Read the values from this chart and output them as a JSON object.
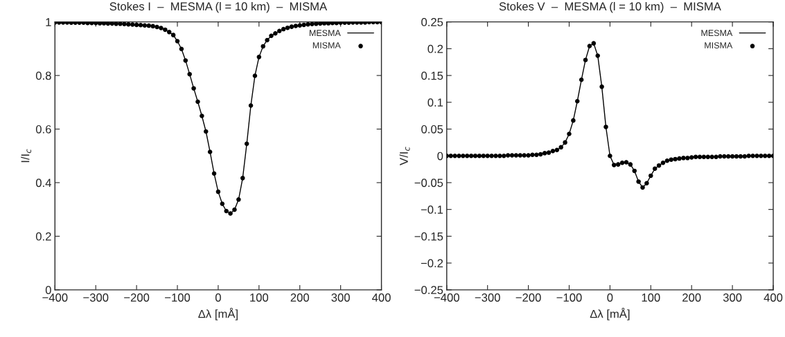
{
  "chart_data": [
    {
      "type": "line",
      "title": "Stokes I  –  MESMA (l = 10 km)  –  MISMA",
      "xlabel": "Δλ [mÅ]",
      "ylabel": "I/I$_{c}$",
      "x": [
        -400,
        -390,
        -380,
        -370,
        -360,
        -350,
        -340,
        -330,
        -320,
        -310,
        -300,
        -290,
        -280,
        -270,
        -260,
        -250,
        -240,
        -230,
        -220,
        -210,
        -200,
        -190,
        -180,
        -170,
        -160,
        -150,
        -140,
        -130,
        -120,
        -110,
        -100,
        -90,
        -80,
        -70,
        -60,
        -50,
        -40,
        -30,
        -20,
        -10,
        0,
        10,
        20,
        30,
        40,
        50,
        60,
        70,
        80,
        90,
        100,
        110,
        120,
        130,
        140,
        150,
        160,
        170,
        180,
        190,
        200,
        210,
        220,
        230,
        240,
        250,
        260,
        270,
        280,
        290,
        300,
        310,
        320,
        330,
        340,
        350,
        360,
        370,
        380,
        390,
        400
      ],
      "series": [
        {
          "name": "MESMA",
          "color": "#000000",
          "marker": "none",
          "values": [
            0.998,
            0.998,
            0.998,
            0.998,
            0.997,
            0.997,
            0.997,
            0.997,
            0.996,
            0.996,
            0.996,
            0.995,
            0.995,
            0.994,
            0.994,
            0.993,
            0.993,
            0.992,
            0.991,
            0.99,
            0.989,
            0.988,
            0.987,
            0.986,
            0.984,
            0.981,
            0.977,
            0.971,
            0.962,
            0.951,
            0.928,
            0.899,
            0.856,
            0.805,
            0.752,
            0.702,
            0.649,
            0.591,
            0.515,
            0.434,
            0.366,
            0.321,
            0.294,
            0.285,
            0.299,
            0.337,
            0.417,
            0.545,
            0.688,
            0.799,
            0.869,
            0.909,
            0.932,
            0.948,
            0.957,
            0.966,
            0.973,
            0.978,
            0.982,
            0.985,
            0.987,
            0.989,
            0.991,
            0.992,
            0.993,
            0.994,
            0.995,
            0.995,
            0.996,
            0.996,
            0.997,
            0.997,
            0.997,
            0.998,
            0.998,
            0.998,
            0.998,
            0.999,
            0.999,
            0.999,
            0.999
          ]
        },
        {
          "name": "MISMA",
          "type": "scatter",
          "color": "#000000",
          "marker": "circle",
          "values": [
            0.998,
            0.998,
            0.998,
            0.998,
            0.997,
            0.997,
            0.997,
            0.997,
            0.996,
            0.996,
            0.996,
            0.995,
            0.995,
            0.994,
            0.994,
            0.993,
            0.993,
            0.992,
            0.991,
            0.99,
            0.989,
            0.988,
            0.987,
            0.986,
            0.984,
            0.981,
            0.977,
            0.971,
            0.962,
            0.951,
            0.928,
            0.899,
            0.856,
            0.805,
            0.752,
            0.702,
            0.649,
            0.591,
            0.515,
            0.434,
            0.366,
            0.321,
            0.294,
            0.285,
            0.299,
            0.337,
            0.417,
            0.545,
            0.688,
            0.799,
            0.869,
            0.909,
            0.932,
            0.948,
            0.957,
            0.966,
            0.973,
            0.978,
            0.982,
            0.985,
            0.987,
            0.989,
            0.991,
            0.992,
            0.993,
            0.994,
            0.995,
            0.995,
            0.996,
            0.996,
            0.997,
            0.997,
            0.997,
            0.998,
            0.998,
            0.998,
            0.998,
            0.999,
            0.999,
            0.999,
            0.999
          ]
        }
      ],
      "xlim": [
        -400,
        400
      ],
      "xticks": [
        {
          "value": -400,
          "label": "−400"
        },
        {
          "value": -300,
          "label": "−300"
        },
        {
          "value": -200,
          "label": "−200"
        },
        {
          "value": -100,
          "label": "−100"
        },
        0,
        100,
        200,
        300,
        400
      ],
      "ylim": [
        0,
        1
      ],
      "yticks": [
        0,
        0.2,
        0.4,
        0.6,
        0.8,
        1
      ],
      "legend": "top right",
      "grid": false
    },
    {
      "type": "line",
      "title": "Stokes V  –  MESMA (l = 10 km)  –  MISMA",
      "xlabel": "Δλ [mÅ]",
      "ylabel": "V/I$_{c}$",
      "x": [
        -400,
        -390,
        -380,
        -370,
        -360,
        -350,
        -340,
        -330,
        -320,
        -310,
        -300,
        -290,
        -280,
        -270,
        -260,
        -250,
        -240,
        -230,
        -220,
        -210,
        -200,
        -190,
        -180,
        -170,
        -160,
        -150,
        -140,
        -130,
        -120,
        -110,
        -100,
        -90,
        -80,
        -70,
        -60,
        -50,
        -40,
        -30,
        -20,
        -10,
        0,
        10,
        20,
        30,
        40,
        50,
        60,
        70,
        80,
        90,
        100,
        110,
        120,
        130,
        140,
        150,
        160,
        170,
        180,
        190,
        200,
        210,
        220,
        230,
        240,
        250,
        260,
        270,
        280,
        290,
        300,
        310,
        320,
        330,
        340,
        350,
        360,
        370,
        380,
        390,
        400
      ],
      "series": [
        {
          "name": "MESMA",
          "color": "#000000",
          "marker": "none",
          "values": [
            0,
            0,
            0,
            0,
            0,
            0,
            0,
            0,
            0,
            0,
            0,
            0,
            0,
            0,
            0,
            0.001,
            0.001,
            0.001,
            0.001,
            0.001,
            0.001,
            0.002,
            0.002,
            0.003,
            0.005,
            0.006,
            0.009,
            0.011,
            0.016,
            0.025,
            0.041,
            0.066,
            0.102,
            0.142,
            0.179,
            0.205,
            0.21,
            0.187,
            0.129,
            0.054,
            0,
            -0.017,
            -0.016,
            -0.013,
            -0.012,
            -0.016,
            -0.028,
            -0.048,
            -0.059,
            -0.051,
            -0.037,
            -0.024,
            -0.018,
            -0.013,
            -0.009,
            -0.007,
            -0.006,
            -0.005,
            -0.004,
            -0.004,
            -0.003,
            -0.002,
            -0.002,
            -0.002,
            -0.002,
            -0.002,
            -0.002,
            -0.001,
            -0.001,
            -0.001,
            -0.001,
            -0.001,
            -0.001,
            -0.001,
            0,
            0,
            0,
            0,
            0,
            0,
            0
          ]
        },
        {
          "name": "MISMA",
          "type": "scatter",
          "color": "#000000",
          "marker": "circle",
          "values": [
            0,
            0,
            0,
            0,
            0,
            0,
            0,
            0,
            0,
            0,
            0,
            0,
            0,
            0,
            0,
            0.001,
            0.001,
            0.001,
            0.001,
            0.001,
            0.001,
            0.002,
            0.002,
            0.003,
            0.005,
            0.006,
            0.009,
            0.011,
            0.016,
            0.025,
            0.041,
            0.066,
            0.102,
            0.142,
            0.179,
            0.205,
            0.21,
            0.187,
            0.129,
            0.054,
            0,
            -0.017,
            -0.016,
            -0.013,
            -0.012,
            -0.016,
            -0.028,
            -0.048,
            -0.059,
            -0.051,
            -0.037,
            -0.024,
            -0.018,
            -0.013,
            -0.009,
            -0.007,
            -0.006,
            -0.005,
            -0.004,
            -0.004,
            -0.003,
            -0.002,
            -0.002,
            -0.002,
            -0.002,
            -0.002,
            -0.002,
            -0.001,
            -0.001,
            -0.001,
            -0.001,
            -0.001,
            -0.001,
            -0.001,
            0,
            0,
            0,
            0,
            0,
            0,
            0
          ]
        }
      ],
      "xlim": [
        -400,
        400
      ],
      "xticks": [
        {
          "value": -400,
          "label": "−400"
        },
        {
          "value": -300,
          "label": "−300"
        },
        {
          "value": -200,
          "label": "−200"
        },
        {
          "value": -100,
          "label": "−100"
        },
        0,
        100,
        200,
        300,
        400
      ],
      "ylim": [
        -0.25,
        0.25
      ],
      "yticks": [
        {
          "value": -0.25,
          "label": "−0.25"
        },
        {
          "value": -0.2,
          "label": "−0.2"
        },
        {
          "value": -0.15,
          "label": "−0.15"
        },
        {
          "value": -0.1,
          "label": "−0.1"
        },
        {
          "value": -0.05,
          "label": "−0.05"
        },
        0,
        0.05,
        0.1,
        0.15,
        0.2,
        0.25
      ],
      "legend": "top right",
      "grid": false
    }
  ]
}
